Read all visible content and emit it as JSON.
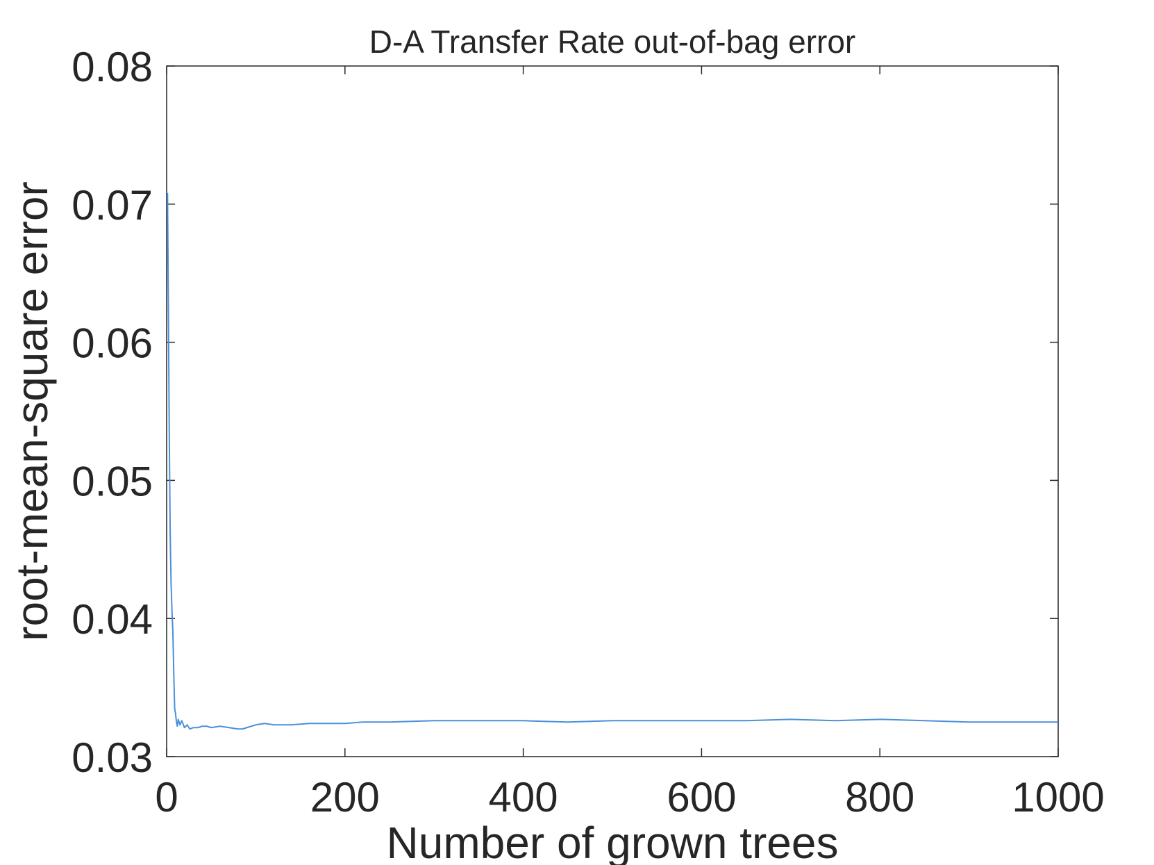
{
  "chart_data": {
    "type": "line",
    "title": "D-A Transfer Rate out-of-bag error",
    "xlabel": "Number of grown trees",
    "ylabel": "root-mean-square error",
    "xlim": [
      0,
      1000
    ],
    "ylim": [
      0.03,
      0.08
    ],
    "xticks": [
      0,
      200,
      400,
      600,
      800,
      1000
    ],
    "xtick_labels": [
      "0",
      "200",
      "400",
      "600",
      "800",
      "1000"
    ],
    "yticks": [
      0.03,
      0.04,
      0.05,
      0.06,
      0.07,
      0.08
    ],
    "ytick_labels": [
      "0.03",
      "0.04",
      "0.05",
      "0.06",
      "0.07",
      "0.08"
    ],
    "grid": false,
    "line_color": "#4a90d9",
    "axis_color": "#262626",
    "series": [
      {
        "x": [
          1,
          2,
          3,
          4,
          5,
          6,
          7,
          8,
          9,
          10,
          11,
          12,
          13,
          15,
          17,
          20,
          23,
          26,
          30,
          35,
          40,
          45,
          50,
          60,
          70,
          80,
          85,
          90,
          100,
          110,
          120,
          140,
          160,
          180,
          200,
          220,
          250,
          300,
          350,
          400,
          450,
          500,
          550,
          600,
          650,
          700,
          750,
          800,
          850,
          900,
          950,
          1000
        ],
        "y": [
          0.0708,
          0.062,
          0.053,
          0.046,
          0.0425,
          0.0405,
          0.039,
          0.036,
          0.0335,
          0.0331,
          0.0325,
          0.0322,
          0.0327,
          0.0323,
          0.0326,
          0.0321,
          0.0323,
          0.032,
          0.0321,
          0.0321,
          0.0322,
          0.0322,
          0.0321,
          0.0322,
          0.0321,
          0.032,
          0.032,
          0.0321,
          0.0323,
          0.0324,
          0.0323,
          0.0323,
          0.0324,
          0.0324,
          0.0324,
          0.0325,
          0.0325,
          0.0326,
          0.0326,
          0.0326,
          0.0325,
          0.0326,
          0.0326,
          0.0326,
          0.0326,
          0.0327,
          0.0326,
          0.0327,
          0.0326,
          0.0325,
          0.0325,
          0.0325
        ]
      }
    ]
  }
}
